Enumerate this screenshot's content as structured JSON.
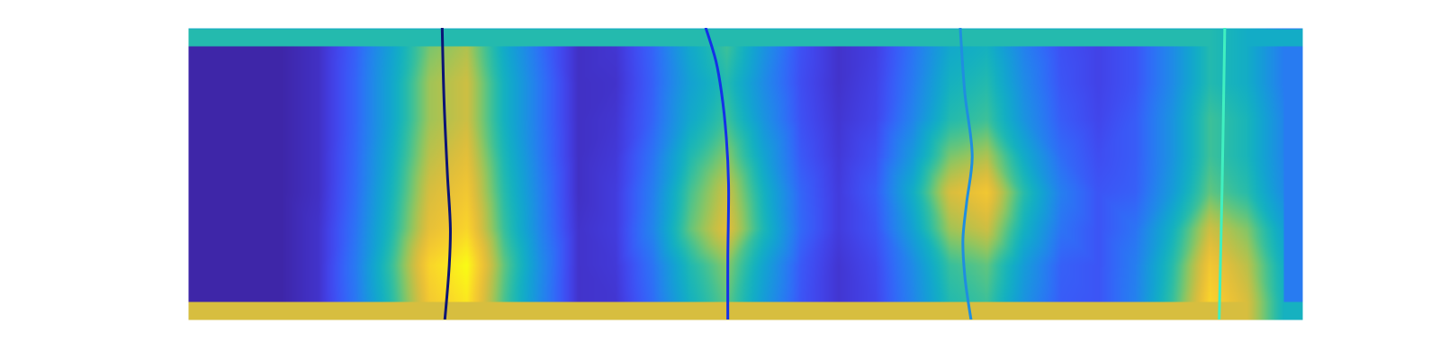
{
  "chart_data": {
    "type": "heatmap",
    "tick_labels": false,
    "xlim": [
      0,
      30
    ],
    "ylim": [
      0,
      8
    ],
    "color_range": [
      0,
      1
    ],
    "cells": [
      [
        0,
        0,
        0,
        0.04,
        0.18,
        0.39,
        0.63,
        0.7,
        0.42,
        0.21,
        0.04,
        0.06,
        0.19,
        0.41,
        0.55,
        0.33,
        0.14,
        0.05,
        0.09,
        0.23,
        0.41,
        0.45,
        0.27,
        0.14,
        0.1,
        0.15,
        0.3,
        0.5,
        0.43,
        0.25
      ],
      [
        0,
        0,
        0,
        0.04,
        0.19,
        0.41,
        0.68,
        0.75,
        0.45,
        0.23,
        0.04,
        0.05,
        0.18,
        0.38,
        0.5,
        0.3,
        0.13,
        0.05,
        0.1,
        0.25,
        0.45,
        0.5,
        0.3,
        0.15,
        0.1,
        0.15,
        0.3,
        0.5,
        0.43,
        0.25
      ],
      [
        0,
        0,
        0,
        0.04,
        0.19,
        0.41,
        0.68,
        0.75,
        0.45,
        0.23,
        0.04,
        0.06,
        0.19,
        0.41,
        0.55,
        0.33,
        0.14,
        0.06,
        0.11,
        0.28,
        0.5,
        0.55,
        0.33,
        0.17,
        0.11,
        0.17,
        0.33,
        0.55,
        0.47,
        0.28
      ],
      [
        0,
        0,
        0,
        0.04,
        0.2,
        0.44,
        0.72,
        0.8,
        0.48,
        0.24,
        0.04,
        0.07,
        0.23,
        0.49,
        0.65,
        0.39,
        0.16,
        0.07,
        0.14,
        0.35,
        0.63,
        0.7,
        0.42,
        0.21,
        0.13,
        0.17,
        0.33,
        0.55,
        0.47,
        0.28
      ],
      [
        0,
        0,
        0,
        0.04,
        0.21,
        0.47,
        0.77,
        0.85,
        0.51,
        0.26,
        0.04,
        0.08,
        0.26,
        0.56,
        0.75,
        0.45,
        0.19,
        0.08,
        0.17,
        0.43,
        0.77,
        0.85,
        0.51,
        0.26,
        0.15,
        0.18,
        0.36,
        0.6,
        0.51,
        0.3
      ],
      [
        0,
        0,
        0,
        0.05,
        0.23,
        0.5,
        0.81,
        0.9,
        0.54,
        0.27,
        0.05,
        0.08,
        0.28,
        0.6,
        0.8,
        0.48,
        0.2,
        0.08,
        0.15,
        0.38,
        0.68,
        0.75,
        0.45,
        0.23,
        0.15,
        0.23,
        0.45,
        0.75,
        0.64,
        0.38
      ],
      [
        0,
        0,
        0,
        0.05,
        0.25,
        0.55,
        0.9,
        1.0,
        0.6,
        0.3,
        0.05,
        0.07,
        0.23,
        0.49,
        0.65,
        0.39,
        0.16,
        0.06,
        0.12,
        0.3,
        0.54,
        0.6,
        0.36,
        0.18,
        0.15,
        0.26,
        0.51,
        0.85,
        0.72,
        0.43
      ],
      [
        0,
        0,
        0,
        0.05,
        0.24,
        0.52,
        0.86,
        0.95,
        0.57,
        0.29,
        0.05,
        0.06,
        0.21,
        0.45,
        0.6,
        0.36,
        0.15,
        0.06,
        0.11,
        0.28,
        0.5,
        0.55,
        0.33,
        0.17,
        0.15,
        0.27,
        0.54,
        0.9,
        0.77,
        0.45
      ]
    ],
    "series": [
      {
        "type": "line",
        "color": "#0b1475",
        "x": [
          6.83,
          6.88,
          6.97,
          7.05,
          7.02,
          6.9
        ],
        "values": [
          0,
          2,
          4,
          5.5,
          6.5,
          8
        ]
      },
      {
        "type": "line",
        "color": "#1431e8",
        "x": [
          13.93,
          14.2,
          14.35,
          14.48,
          14.54,
          14.52,
          14.52
        ],
        "values": [
          0,
          0.9,
          1.76,
          3,
          4.28,
          6.29,
          8
        ]
      },
      {
        "type": "line",
        "color": "#1f8ee0",
        "x": [
          20.78,
          20.9,
          21.1,
          20.95,
          20.85,
          20.9,
          21.07
        ],
        "values": [
          0,
          1.76,
          3.52,
          4.78,
          5.79,
          6.79,
          8
        ]
      },
      {
        "type": "line",
        "color": "#40f0c0",
        "x": [
          27.9,
          27.83,
          27.75
        ],
        "values": [
          0,
          4.28,
          8
        ]
      }
    ]
  }
}
